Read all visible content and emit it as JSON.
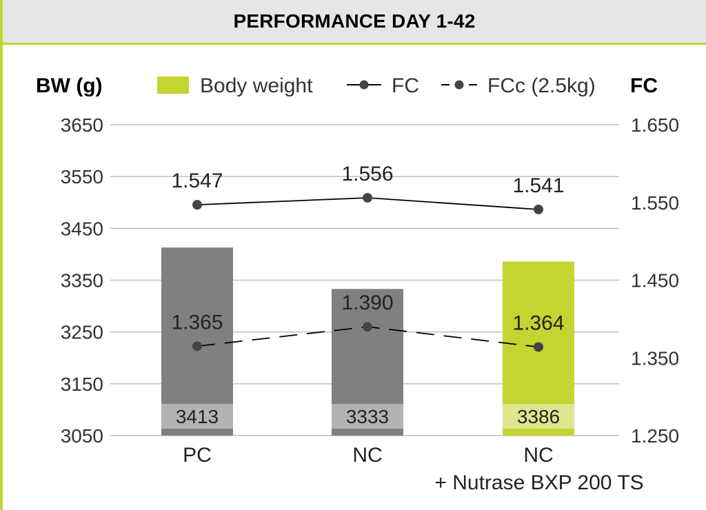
{
  "header": {
    "title": "PERFORMANCE DAY 1-42"
  },
  "colors": {
    "accent": "#c4d431",
    "bar_gray": "#808080",
    "label_band_gray": "#b3b3b3",
    "label_band_green": "#dde58e",
    "line": "#000000",
    "point": "#444444",
    "grid": "#bfbfbf",
    "header_bg": "#e6e6e6"
  },
  "chart_data": {
    "type": "bar",
    "title": "PERFORMANCE DAY 1-42",
    "categories": [
      [
        "PC"
      ],
      [
        "NC"
      ],
      [
        "NC",
        "+ Nutrase BXP 200 TS"
      ]
    ],
    "y_left": {
      "label": "BW (g)",
      "min": 3050,
      "max": 3650,
      "ticks": [
        "3650",
        "3550",
        "3450",
        "3350",
        "3250",
        "3150",
        "3050"
      ]
    },
    "y_right": {
      "label": "FC",
      "min": 1.25,
      "max": 1.65,
      "ticks": [
        "1.650",
        "1.550",
        "1.450",
        "1.350",
        "1.250"
      ]
    },
    "grid": true,
    "legend_position": "top",
    "series": [
      {
        "name": "Body weight",
        "kind": "bar",
        "axis": "left",
        "values": [
          3413,
          3333,
          3386
        ],
        "labels": [
          "3413",
          "3333",
          "3386"
        ],
        "colors": [
          "#808080",
          "#808080",
          "#c4d431"
        ]
      },
      {
        "name": "FC",
        "kind": "line",
        "style": "solid",
        "axis": "right",
        "values": [
          1.547,
          1.556,
          1.541
        ],
        "labels": [
          "1.547",
          "1.556",
          "1.541"
        ]
      },
      {
        "name": "FCc (2.5kg)",
        "kind": "line",
        "style": "dashed",
        "axis": "right",
        "values": [
          1.365,
          1.39,
          1.364
        ],
        "labels": [
          "1.365",
          "1.390",
          "1.364"
        ]
      }
    ]
  }
}
